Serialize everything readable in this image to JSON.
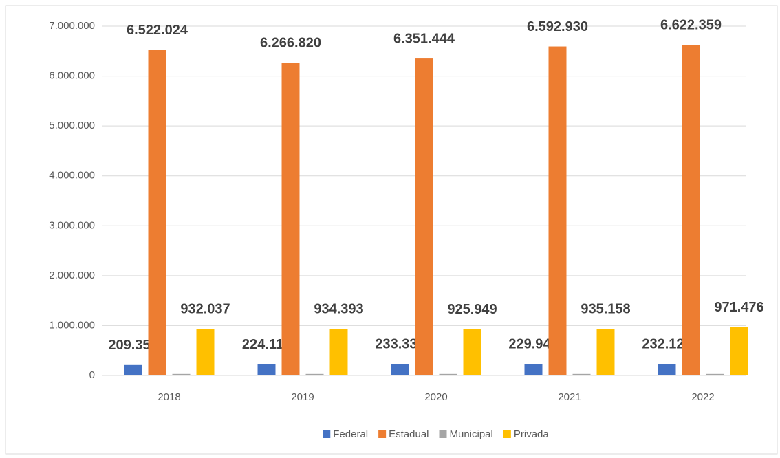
{
  "chart_data": {
    "type": "bar",
    "categories": [
      "2018",
      "2019",
      "2020",
      "2021",
      "2022"
    ],
    "series": [
      {
        "name": "Federal",
        "color": "#4472c4",
        "values": [
          209358,
          224113,
          233330,
          229948,
          232121
        ],
        "value_labels": [
          "209.358",
          "224.113",
          "233.330",
          "229.948",
          "232.121"
        ]
      },
      {
        "name": "Estadual",
        "color": "#ed7d31",
        "values": [
          6522024,
          6266820,
          6351444,
          6592930,
          6622359
        ],
        "value_labels": [
          "6.522.024",
          "6.266.820",
          "6.351.444",
          "6.592.930",
          "6.622.359"
        ]
      },
      {
        "name": "Municipal",
        "color": "#a5a5a5",
        "values": [
          30000,
          30000,
          30000,
          30000,
          30000
        ]
      },
      {
        "name": "Privada",
        "color": "#ffc000",
        "values": [
          932037,
          934393,
          925949,
          935158,
          971476
        ],
        "value_labels": [
          "932.037",
          "934.393",
          "925.949",
          "935.158",
          "971.476"
        ]
      }
    ],
    "ylim": [
      0,
      7000000
    ],
    "yticks": [
      0,
      {
        "value": 1000000,
        "label": "1.000.000"
      },
      {
        "value": 2000000,
        "label": "2.000.000"
      },
      {
        "value": 3000000,
        "label": "3.000.000"
      },
      {
        "value": 4000000,
        "label": "4.000.000"
      },
      {
        "value": 5000000,
        "label": "5.000.000"
      },
      {
        "value": 6000000,
        "label": "6.000.000"
      },
      {
        "value": 7000000,
        "label": "7.000.000"
      }
    ],
    "grid": true,
    "legend": "bottom"
  }
}
